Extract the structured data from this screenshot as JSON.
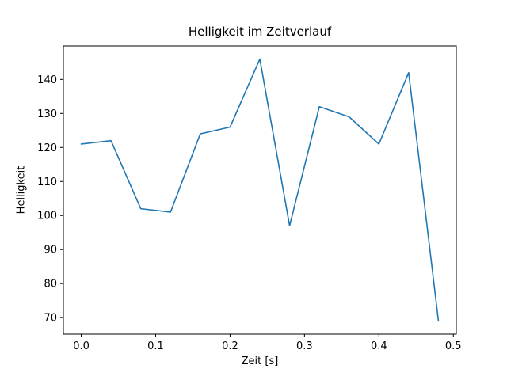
{
  "chart_data": {
    "type": "line",
    "title": "Helligkeit im Zeitverlauf",
    "xlabel": "Zeit [s]",
    "ylabel": "Helligkeit",
    "x": [
      0.0,
      0.04,
      0.08,
      0.12,
      0.16,
      0.2,
      0.24,
      0.28,
      0.32,
      0.36,
      0.4,
      0.44,
      0.48
    ],
    "y": [
      121,
      122,
      102,
      101,
      124,
      126,
      146,
      97,
      132,
      129,
      121,
      142,
      69
    ],
    "xlim": [
      -0.024,
      0.504
    ],
    "ylim": [
      65.15,
      149.85
    ],
    "xticks": [
      0.0,
      0.1,
      0.2,
      0.3,
      0.4,
      0.5
    ],
    "xtick_labels": [
      "0.0",
      "0.1",
      "0.2",
      "0.3",
      "0.4",
      "0.5"
    ],
    "yticks": [
      70,
      80,
      90,
      100,
      110,
      120,
      130,
      140
    ],
    "ytick_labels": [
      "70",
      "80",
      "90",
      "100",
      "110",
      "120",
      "130",
      "140"
    ],
    "line_color": "#1f77b4",
    "axis_color": "#000000",
    "background_color": "#ffffff",
    "grid": false,
    "legend_position": "none"
  }
}
